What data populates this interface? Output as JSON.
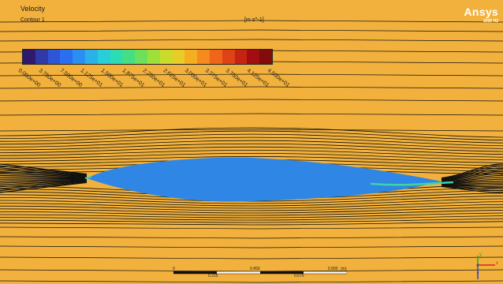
{
  "legend": {
    "title": "Velocity",
    "subtitle": "Contour 1",
    "units": "[m s^-1]",
    "colors": [
      "#2e1a6e",
      "#2f3aa8",
      "#2d56d6",
      "#2a6ff0",
      "#2b8ff2",
      "#2ab2e8",
      "#28cfd8",
      "#2ddbb4",
      "#45de86",
      "#6ce05a",
      "#9ee03a",
      "#c9dc2c",
      "#e9cd27",
      "#f5ad22",
      "#f58a1e",
      "#ef651a",
      "#de4217",
      "#c52413",
      "#a20e0f",
      "#820b0b"
    ],
    "tick_labels": [
      "0.000e+00",
      "3.750e+00",
      "7.500e+00",
      "1.125e+01",
      "1.500e+01",
      "1.875e+01",
      "2.250e+01",
      "2.625e+01",
      "3.000e+01",
      "3.375e+01",
      "3.750e+01",
      "4.125e+01",
      "4.500e+01"
    ]
  },
  "brand": {
    "name": "Ansys",
    "version": "2025 R2"
  },
  "scale_bar": {
    "top_labels": [
      "0",
      "0.450",
      "0.900",
      "(m)"
    ],
    "bottom_labels": [
      "0.225",
      "0.675"
    ]
  },
  "triad": {
    "x_label": "x",
    "y_label": "y"
  },
  "colors": {
    "background": "#f2b13c",
    "body": "#2f86e4",
    "streamline": "#111111"
  }
}
